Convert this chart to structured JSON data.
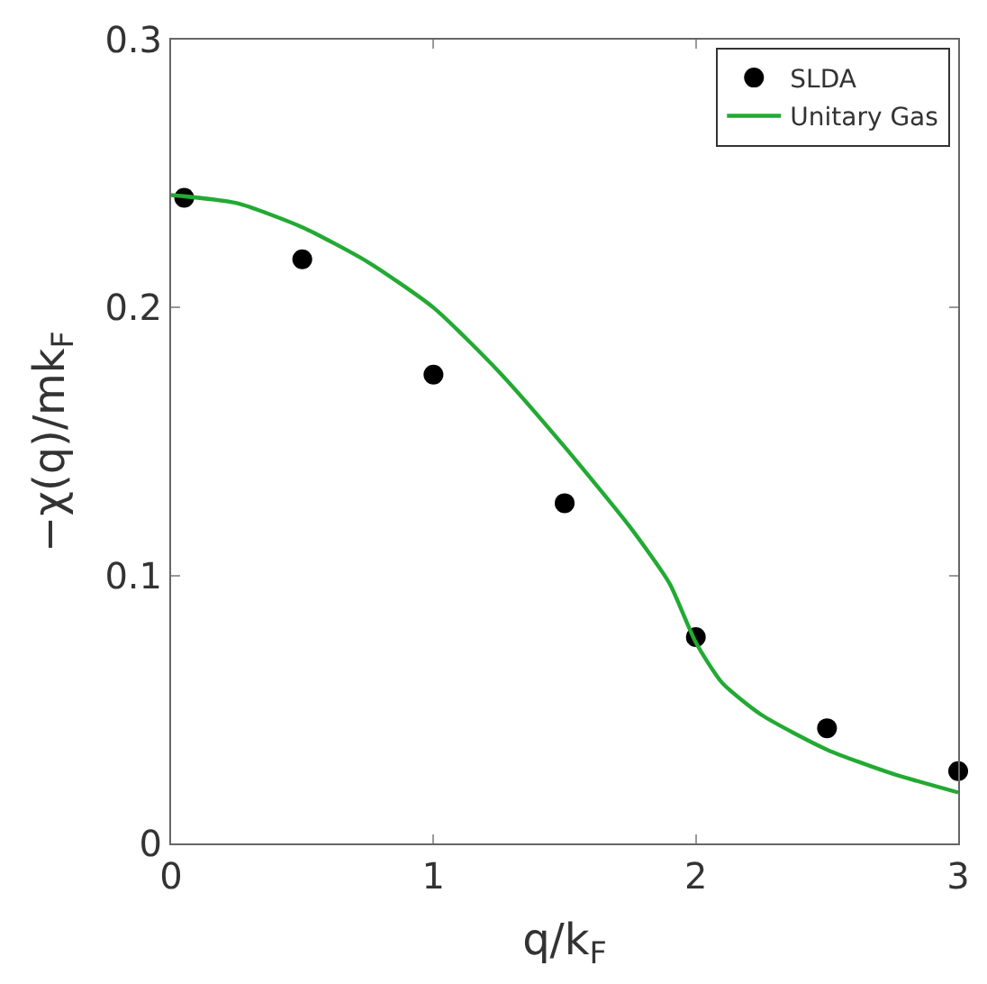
{
  "chart_data": {
    "type": "scatter",
    "xlabel": "q/k$_{F}$",
    "ylabel": "−χ(q)/mk$_{F}$",
    "xlim": [
      0,
      3
    ],
    "ylim": [
      0,
      0.3
    ],
    "xticks": [
      0,
      1,
      2,
      3
    ],
    "yticks": [
      0,
      0.1,
      0.2,
      0.3
    ],
    "grid": false,
    "legend": "top right",
    "marker": "circle",
    "series": [
      {
        "name": "SLDA",
        "color": "#000000",
        "x": [
          0.05,
          0.5,
          1,
          1.5,
          2,
          2.5,
          3
        ],
        "values": [
          0.241,
          0.218,
          0.175,
          0.127,
          0.077,
          0.043,
          0.027
        ]
      },
      {
        "name": "Unitary Gas",
        "type": "line",
        "color": "#22aa33",
        "marker": "none",
        "x": [
          0,
          0.25,
          0.5,
          0.75,
          1,
          1.25,
          1.5,
          1.75,
          1.9,
          2,
          2.1,
          2.25,
          2.5,
          2.75,
          3
        ],
        "values": [
          0.242,
          0.239,
          0.23,
          0.217,
          0.2,
          0.176,
          0.148,
          0.118,
          0.097,
          0.075,
          0.06,
          0.048,
          0.035,
          0.026,
          0.019
        ]
      }
    ]
  }
}
